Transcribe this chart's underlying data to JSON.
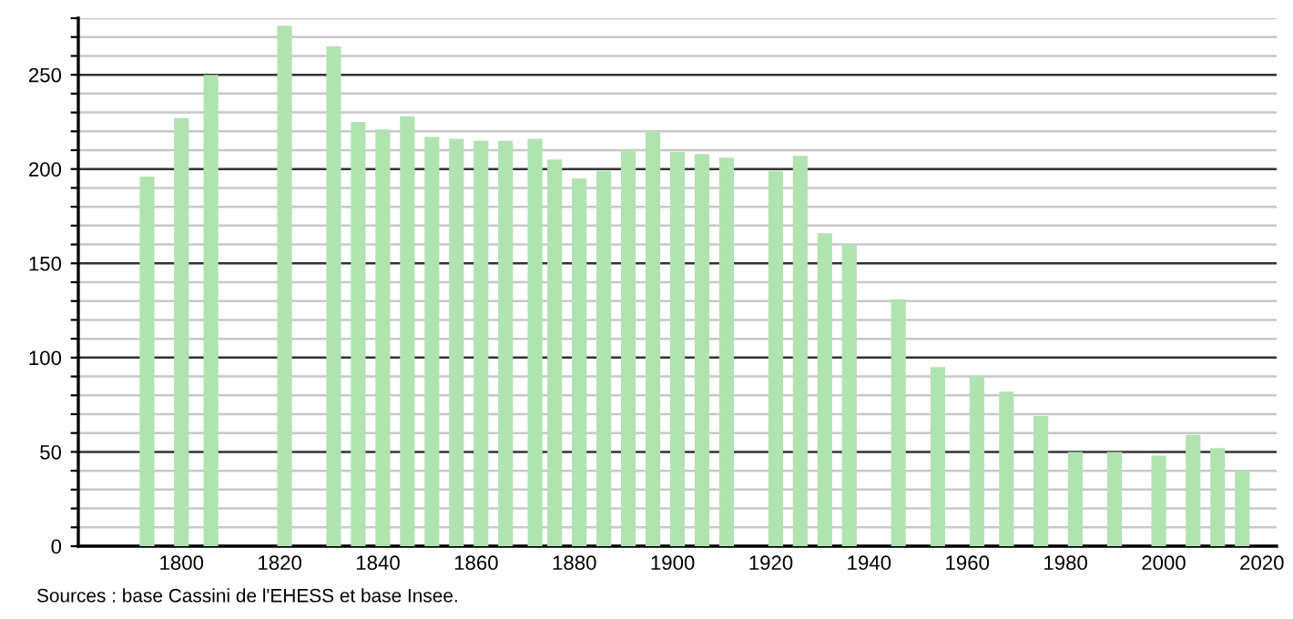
{
  "chart_data": {
    "type": "bar",
    "x": [
      1793,
      1800,
      1806,
      1821,
      1831,
      1836,
      1841,
      1846,
      1851,
      1856,
      1861,
      1866,
      1872,
      1876,
      1881,
      1886,
      1891,
      1896,
      1901,
      1906,
      1911,
      1921,
      1926,
      1931,
      1936,
      1946,
      1954,
      1962,
      1968,
      1975,
      1982,
      1990,
      1999,
      2006,
      2011,
      2016
    ],
    "values": [
      196,
      227,
      250,
      276,
      265,
      225,
      221,
      228,
      217,
      216,
      215,
      215,
      216,
      205,
      195,
      199,
      210,
      220,
      209,
      208,
      206,
      199,
      207,
      166,
      160,
      131,
      95,
      90,
      82,
      69,
      50,
      50,
      48,
      59,
      52,
      40
    ],
    "color": "#b0e3b0",
    "xlim": [
      1779,
      2023
    ],
    "xticks": [
      1800,
      1820,
      1840,
      1860,
      1880,
      1900,
      1920,
      1940,
      1960,
      1980,
      2000,
      2020
    ],
    "ylim": [
      0,
      280
    ],
    "yticks": [
      0,
      {
        "value": 10,
        "label": null
      },
      {
        "value": 20,
        "label": null
      },
      {
        "value": 30,
        "label": null
      },
      {
        "value": 40,
        "label": null
      },
      50,
      {
        "value": 60,
        "label": null
      },
      {
        "value": 70,
        "label": null
      },
      {
        "value": 80,
        "label": null
      },
      {
        "value": 90,
        "label": null
      },
      100,
      {
        "value": 110,
        "label": null
      },
      {
        "value": 120,
        "label": null
      },
      {
        "value": 130,
        "label": null
      },
      {
        "value": 140,
        "label": null
      },
      150,
      {
        "value": 160,
        "label": null
      },
      {
        "value": 170,
        "label": null
      },
      {
        "value": 180,
        "label": null
      },
      {
        "value": 190,
        "label": null
      },
      200,
      {
        "value": 210,
        "label": null
      },
      {
        "value": 220,
        "label": null
      },
      {
        "value": 230,
        "label": null
      },
      {
        "value": 240,
        "label": null
      },
      250,
      {
        "value": 260,
        "label": null
      },
      {
        "value": 270,
        "label": null
      },
      {
        "value": 280,
        "label": null
      }
    ],
    "grid": "y",
    "annotations": [
      "Sources : base Cassini de l'EHESS et base Insee."
    ]
  }
}
